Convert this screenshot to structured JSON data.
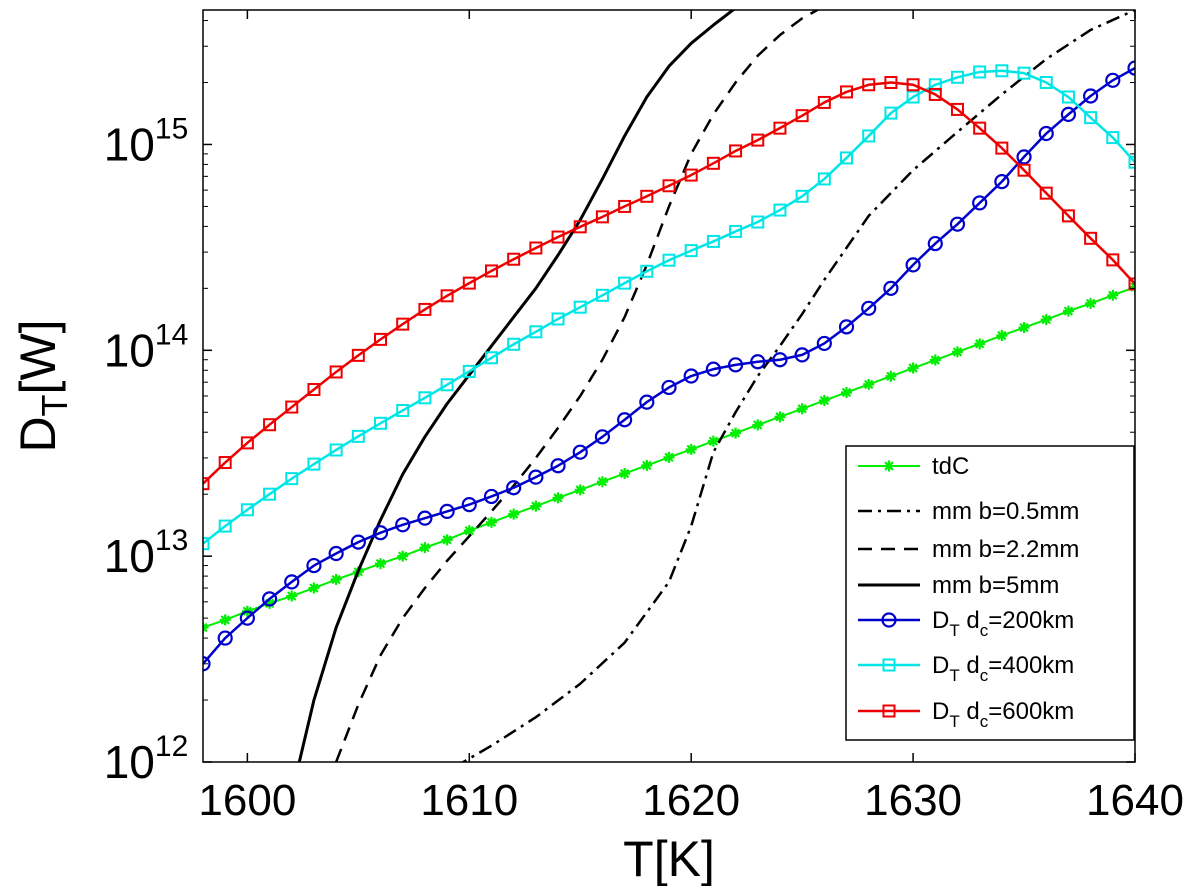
{
  "chart_data": {
    "type": "line",
    "xlabel": "T[K]",
    "ylabel_main": "D",
    "ylabel_sub": "T",
    "ylabel_suffix": "[W]",
    "xlim": [
      1598,
      1640
    ],
    "ylim": [
      1000000000000.0,
      4500000000000000.0
    ],
    "yscale": "log",
    "grid": false,
    "legend_position": "bottom-right",
    "x_ticks": [
      1600,
      1610,
      1620,
      1630,
      1640
    ],
    "y_ticks": [
      {
        "value": 1000000000000.0,
        "base": "10",
        "exp": "12"
      },
      {
        "value": 10000000000000.0,
        "base": "10",
        "exp": "13"
      },
      {
        "value": 100000000000000.0,
        "base": "10",
        "exp": "14"
      },
      {
        "value": 1000000000000000.0,
        "base": "10",
        "exp": "15"
      }
    ],
    "series": [
      {
        "id": "tdc",
        "name": "tdC",
        "legend_text": "tdC",
        "color": "#00ee00",
        "dash": "",
        "line_width": 2,
        "marker": "asterisk",
        "x": [
          1598,
          1599,
          1600,
          1601,
          1602,
          1603,
          1604,
          1605,
          1606,
          1607,
          1608,
          1609,
          1610,
          1611,
          1612,
          1613,
          1614,
          1615,
          1616,
          1617,
          1618,
          1619,
          1620,
          1621,
          1622,
          1623,
          1624,
          1625,
          1626,
          1627,
          1628,
          1629,
          1630,
          1631,
          1632,
          1633,
          1634,
          1635,
          1636,
          1637,
          1638,
          1639,
          1640
        ],
        "y": [
          4500000000000.0,
          4900000000000.0,
          5400000000000.0,
          5900000000000.0,
          6400000000000.0,
          7000000000000.0,
          7700000000000.0,
          8400000000000.0,
          9200000000000.0,
          10000000000000.0,
          11000000000000.0,
          12000000000000.0,
          13300000000000.0,
          14600000000000.0,
          16000000000000.0,
          17500000000000.0,
          19200000000000.0,
          21000000000000.0,
          23000000000000.0,
          25200000000000.0,
          27600000000000.0,
          30200000000000.0,
          33000000000000.0,
          36200000000000.0,
          39600000000000.0,
          43400000000000.0,
          47500000000000.0,
          52000000000000.0,
          57000000000000.0,
          62400000000000.0,
          68300000000000.0,
          74800000000000.0,
          82000000000000.0,
          89700000000000.0,
          98200000000000.0,
          107500000000000.0,
          118000000000000.0,
          129000000000000.0,
          141000000000000.0,
          155000000000000.0,
          169000000000000.0,
          185000000000000.0,
          203000000000000.0
        ]
      },
      {
        "id": "mm05",
        "name": "mm b=0.5mm",
        "legend_text": "mm b=0.5mm",
        "color": "#000000",
        "dash": "14 6 3 6",
        "line_width": 2.5,
        "marker": "none",
        "x": [
          1607,
          1609,
          1611,
          1613,
          1615,
          1617,
          1619,
          1620,
          1621,
          1622,
          1623,
          1624,
          1625,
          1626,
          1628,
          1630,
          1632,
          1634,
          1636,
          1638,
          1640
        ],
        "y": [
          700000000000.0,
          900000000000.0,
          1200000000000.0,
          1650000000000.0,
          2400000000000.0,
          3800000000000.0,
          7500000000000.0,
          14000000000000.0,
          32000000000000.0,
          50000000000000.0,
          75000000000000.0,
          105000000000000.0,
          150000000000000.0,
          220000000000000.0,
          450000000000000.0,
          750000000000000.0,
          1150000000000000.0,
          1750000000000000.0,
          2600000000000000.0,
          3600000000000000.0,
          4500000000000000.0
        ]
      },
      {
        "id": "mm22",
        "name": "mm b=2.2mm",
        "legend_text": "mm b=2.2mm",
        "color": "#000000",
        "dash": "14 9",
        "line_width": 2.5,
        "marker": "none",
        "x": [
          1604,
          1605,
          1606,
          1607,
          1608,
          1609,
          1610,
          1611,
          1612,
          1613,
          1614,
          1615,
          1616,
          1617,
          1618,
          1619,
          1620,
          1621,
          1622,
          1623,
          1624,
          1625,
          1626,
          1627
        ],
        "y": [
          1000000000000.0,
          1900000000000.0,
          3300000000000.0,
          5000000000000.0,
          7000000000000.0,
          9500000000000.0,
          12500000000000.0,
          16500000000000.0,
          22000000000000.0,
          30000000000000.0,
          42000000000000.0,
          60000000000000.0,
          90000000000000.0,
          145000000000000.0,
          260000000000000.0,
          500000000000000.0,
          900000000000000.0,
          1400000000000000.0,
          2000000000000000.0,
          2700000000000000.0,
          3400000000000000.0,
          4100000000000000.0,
          4700000000000000.0,
          5300000000000000.0
        ]
      },
      {
        "id": "mm5",
        "name": "mm b=5mm",
        "legend_text": "mm b=5mm",
        "color": "#000000",
        "dash": "",
        "line_width": 3,
        "marker": "none",
        "x": [
          1602,
          1603,
          1604,
          1605,
          1606,
          1607,
          1608,
          1609,
          1610,
          1611,
          1612,
          1613,
          1614,
          1615,
          1616,
          1617,
          1618,
          1619,
          1620,
          1621,
          1622
        ],
        "y": [
          700000000000.0,
          2000000000000.0,
          4500000000000.0,
          8500000000000.0,
          15000000000000.0,
          25000000000000.0,
          38000000000000.0,
          55000000000000.0,
          76000000000000.0,
          105000000000000.0,
          145000000000000.0,
          200000000000000.0,
          290000000000000.0,
          430000000000000.0,
          680000000000000.0,
          1100000000000000.0,
          1700000000000000.0,
          2400000000000000.0,
          3100000000000000.0,
          3800000000000000.0,
          4600000000000000.0
        ]
      },
      {
        "id": "dt200",
        "name": "D_T d_c=200km",
        "legend_main": "D",
        "legend_sub1": "T",
        "legend_mid": " d",
        "legend_sub2": "c",
        "legend_tail": "=200km",
        "color": "#0000cc",
        "dash": "",
        "line_width": 2.5,
        "marker": "circle",
        "x": [
          1598,
          1599,
          1600,
          1601,
          1602,
          1603,
          1604,
          1605,
          1606,
          1607,
          1608,
          1609,
          1610,
          1611,
          1612,
          1613,
          1614,
          1615,
          1616,
          1617,
          1618,
          1619,
          1620,
          1621,
          1622,
          1623,
          1624,
          1625,
          1626,
          1627,
          1628,
          1629,
          1630,
          1631,
          1632,
          1633,
          1634,
          1635,
          1636,
          1637,
          1638,
          1639,
          1640
        ],
        "y": [
          3000000000000.0,
          4000000000000.0,
          5000000000000.0,
          6200000000000.0,
          7500000000000.0,
          9000000000000.0,
          10300000000000.0,
          11700000000000.0,
          13000000000000.0,
          14200000000000.0,
          15300000000000.0,
          16500000000000.0,
          17800000000000.0,
          19500000000000.0,
          21500000000000.0,
          24200000000000.0,
          27500000000000.0,
          32000000000000.0,
          38000000000000.0,
          46000000000000.0,
          56000000000000.0,
          66000000000000.0,
          75000000000000.0,
          81000000000000.0,
          85000000000000.0,
          88000000000000.0,
          90000000000000.0,
          95000000000000.0,
          108000000000000.0,
          130000000000000.0,
          160000000000000.0,
          200000000000000.0,
          260000000000000.0,
          330000000000000.0,
          410000000000000.0,
          520000000000000.0,
          660000000000000.0,
          870000000000000.0,
          1130000000000000.0,
          1400000000000000.0,
          1720000000000000.0,
          2050000000000000.0,
          2350000000000000.0
        ]
      },
      {
        "id": "dt400",
        "name": "D_T d_c=400km",
        "legend_main": "D",
        "legend_sub1": "T",
        "legend_mid": " d",
        "legend_sub2": "c",
        "legend_tail": "=400km",
        "color": "#00e6e6",
        "dash": "",
        "line_width": 2.5,
        "marker": "square",
        "x": [
          1598,
          1599,
          1600,
          1601,
          1602,
          1603,
          1604,
          1605,
          1606,
          1607,
          1608,
          1609,
          1610,
          1611,
          1612,
          1613,
          1614,
          1615,
          1616,
          1617,
          1618,
          1619,
          1620,
          1621,
          1622,
          1623,
          1624,
          1625,
          1626,
          1627,
          1628,
          1629,
          1630,
          1631,
          1632,
          1633,
          1634,
          1635,
          1636,
          1637,
          1638,
          1639,
          1640
        ],
        "y": [
          11500000000000.0,
          14000000000000.0,
          16800000000000.0,
          20000000000000.0,
          23800000000000.0,
          28000000000000.0,
          32800000000000.0,
          38200000000000.0,
          44200000000000.0,
          51000000000000.0,
          58800000000000.0,
          68000000000000.0,
          79000000000000.0,
          92000000000000.0,
          107000000000000.0,
          123000000000000.0,
          142000000000000.0,
          162000000000000.0,
          185000000000000.0,
          212000000000000.0,
          242000000000000.0,
          274000000000000.0,
          305000000000000.0,
          338000000000000.0,
          378000000000000.0,
          420000000000000.0,
          480000000000000.0,
          560000000000000.0,
          680000000000000.0,
          860000000000000.0,
          1100000000000000.0,
          1420000000000000.0,
          1700000000000000.0,
          1950000000000000.0,
          2120000000000000.0,
          2250000000000000.0,
          2280000000000000.0,
          2220000000000000.0,
          2000000000000000.0,
          1700000000000000.0,
          1350000000000000.0,
          1080000000000000.0,
          820000000000000.0
        ]
      },
      {
        "id": "dt600",
        "name": "D_T d_c=600km",
        "legend_main": "D",
        "legend_sub1": "T",
        "legend_mid": " d",
        "legend_sub2": "c",
        "legend_tail": "=600km",
        "color": "#ee0000",
        "dash": "",
        "line_width": 2.5,
        "marker": "square",
        "x": [
          1598,
          1599,
          1600,
          1601,
          1602,
          1603,
          1604,
          1605,
          1606,
          1607,
          1608,
          1609,
          1610,
          1611,
          1612,
          1613,
          1614,
          1615,
          1616,
          1617,
          1618,
          1619,
          1620,
          1621,
          1622,
          1623,
          1624,
          1625,
          1626,
          1627,
          1628,
          1629,
          1630,
          1631,
          1632,
          1633,
          1634,
          1635,
          1636,
          1637,
          1638,
          1639,
          1640
        ],
        "y": [
          22500000000000.0,
          28500000000000.0,
          35500000000000.0,
          43500000000000.0,
          53000000000000.0,
          64500000000000.0,
          78500000000000.0,
          94500000000000.0,
          113000000000000.0,
          134000000000000.0,
          158000000000000.0,
          184000000000000.0,
          212000000000000.0,
          243000000000000.0,
          277000000000000.0,
          314000000000000.0,
          355000000000000.0,
          398000000000000.0,
          445000000000000.0,
          500000000000000.0,
          560000000000000.0,
          630000000000000.0,
          710000000000000.0,
          810000000000000.0,
          930000000000000.0,
          1050000000000000.0,
          1200000000000000.0,
          1380000000000000.0,
          1600000000000000.0,
          1800000000000000.0,
          1950000000000000.0,
          2000000000000000.0,
          1950000000000000.0,
          1750000000000000.0,
          1480000000000000.0,
          1200000000000000.0,
          960000000000000.0,
          750000000000000.0,
          580000000000000.0,
          450000000000000.0,
          350000000000000.0,
          275000000000000.0,
          210000000000000.0
        ]
      }
    ]
  }
}
